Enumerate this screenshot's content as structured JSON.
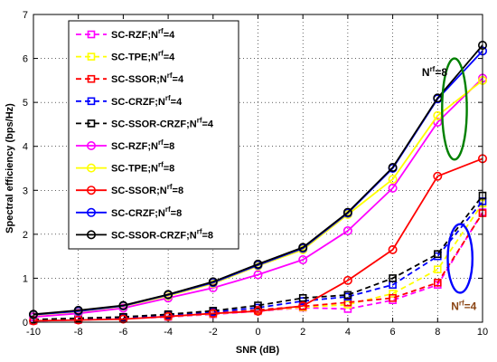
{
  "chart_data": {
    "type": "line",
    "title": "",
    "xlabel": "SNR (dB)",
    "ylabel": "Spectral efficiency (bps/Hz)",
    "xlim": [
      -10,
      10
    ],
    "ylim": [
      0,
      7
    ],
    "x": [
      -10,
      -8,
      -6,
      -4,
      -2,
      0,
      2,
      4,
      6,
      8,
      10
    ],
    "xticks": [
      "-10",
      "-8",
      "-6",
      "-4",
      "-2",
      "0",
      "2",
      "4",
      "6",
      "8",
      "10"
    ],
    "yticks": [
      "0",
      "1",
      "2",
      "3",
      "4",
      "5",
      "6",
      "7"
    ],
    "grid": true,
    "legend_position": "top-left",
    "series": [
      {
        "name": "SC-RZF;N^rf=4",
        "label_main": "SC-RZF;N",
        "label_sup": "rf",
        "label_tail": "=4",
        "color": "#ff00ff",
        "style": "dashed",
        "marker": "square",
        "values": [
          0.03,
          0.05,
          0.08,
          0.12,
          0.18,
          0.25,
          0.33,
          0.3,
          0.5,
          0.85,
          2.5
        ]
      },
      {
        "name": "SC-TPE;N^rf=4",
        "label_main": "SC-TPE;N",
        "label_sup": "rf",
        "label_tail": "=4",
        "color": "#ffff00",
        "style": "dashed",
        "marker": "square",
        "values": [
          0.04,
          0.06,
          0.09,
          0.13,
          0.19,
          0.26,
          0.34,
          0.4,
          0.65,
          1.2,
          2.7
        ]
      },
      {
        "name": "SC-SSOR;N^rf=4",
        "label_main": "SC-SSOR;N",
        "label_sup": "rf",
        "label_tail": "=4",
        "color": "#ff0000",
        "style": "dashed",
        "marker": "square",
        "values": [
          0.05,
          0.07,
          0.1,
          0.14,
          0.2,
          0.28,
          0.36,
          0.45,
          0.55,
          0.9,
          2.48
        ]
      },
      {
        "name": "SC-CRZF;N^rf=4",
        "label_main": "SC-CRZF;N",
        "label_sup": "rf",
        "label_tail": "=4",
        "color": "#0000ff",
        "style": "dashed",
        "marker": "square",
        "values": [
          0.06,
          0.08,
          0.11,
          0.16,
          0.23,
          0.33,
          0.48,
          0.58,
          0.85,
          1.5,
          2.75
        ]
      },
      {
        "name": "SC-SSOR-CRZF;N^rf=4",
        "label_main": "SC-SSOR-CRZF;N",
        "label_sup": "rf",
        "label_tail": "=4",
        "color": "#000000",
        "style": "dashed",
        "marker": "square",
        "values": [
          0.06,
          0.09,
          0.12,
          0.18,
          0.26,
          0.38,
          0.55,
          0.62,
          1.0,
          1.55,
          2.88
        ]
      },
      {
        "name": "SC-RZF;N^rf=8",
        "label_main": "SC-RZF;N",
        "label_sup": "rf",
        "label_tail": "=8",
        "color": "#ff00ff",
        "style": "solid",
        "marker": "circle",
        "values": [
          0.12,
          0.2,
          0.32,
          0.55,
          0.78,
          1.08,
          1.42,
          2.08,
          3.05,
          4.55,
          5.55
        ]
      },
      {
        "name": "SC-TPE;N^rf=8",
        "label_main": "SC-TPE;N",
        "label_sup": "rf",
        "label_tail": "=8",
        "color": "#ffff00",
        "style": "solid",
        "marker": "circle",
        "values": [
          0.16,
          0.24,
          0.36,
          0.6,
          0.88,
          1.28,
          1.65,
          2.45,
          3.25,
          4.7,
          5.5
        ]
      },
      {
        "name": "SC-SSOR;N^rf=8",
        "label_main": "SC-SSOR;N",
        "label_sup": "rf",
        "label_tail": "=8",
        "color": "#ff0000",
        "style": "solid",
        "marker": "circle",
        "values": [
          0.03,
          0.05,
          0.07,
          0.13,
          0.2,
          0.25,
          0.37,
          0.95,
          1.65,
          3.32,
          3.72
        ]
      },
      {
        "name": "SC-CRZF;N^rf=8",
        "label_main": "SC-CRZF;N",
        "label_sup": "rf",
        "label_tail": "=8",
        "color": "#0000ff",
        "style": "solid",
        "marker": "circle",
        "values": [
          0.17,
          0.25,
          0.37,
          0.62,
          0.9,
          1.3,
          1.68,
          2.48,
          3.5,
          5.08,
          6.17
        ]
      },
      {
        "name": "SC-SSOR-CRZF;N^rf=8",
        "label_main": "SC-SSOR-CRZF;N",
        "label_sup": "rf",
        "label_tail": "=8",
        "color": "#000000",
        "style": "solid",
        "marker": "circle",
        "values": [
          0.18,
          0.27,
          0.38,
          0.63,
          0.92,
          1.32,
          1.7,
          2.5,
          3.52,
          5.1,
          6.3
        ]
      }
    ],
    "annotations": [
      {
        "text_main": "N",
        "text_sup": "rf",
        "text_tail": "=8",
        "color": "#000000",
        "x": 7.3,
        "y": 5.6
      },
      {
        "text_main": "N",
        "text_sup": "rf",
        "text_tail": "=4",
        "color": "#8b4513",
        "x": 8.6,
        "y": 0.28
      }
    ],
    "ellipses": [
      {
        "color": "#008000",
        "cx": 8.75,
        "cy": 4.85,
        "rx": 0.55,
        "ry": 1.15
      },
      {
        "color": "#0000ff",
        "cx": 9.0,
        "cy": 1.45,
        "rx": 0.55,
        "ry": 0.78
      }
    ]
  }
}
